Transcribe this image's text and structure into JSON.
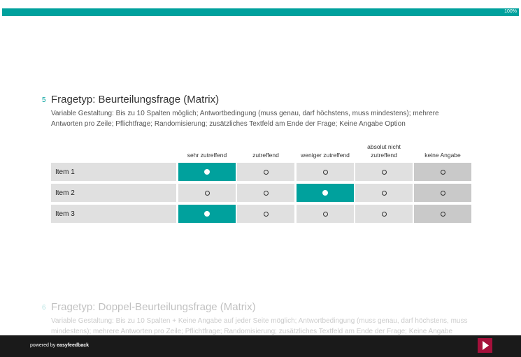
{
  "header": {
    "progress": "100%"
  },
  "questions": [
    {
      "number": "5",
      "title": "Fragetyp: Beurteilungsfrage (Matrix)",
      "description": "Variable Gestaltung: Bis zu 10 Spalten möglich; Antwortbedingung (muss genau, darf höchstens, muss mindestens); mehrere Antworten pro Zeile; Pflichtfrage; Randomisierung; zusätzliches Textfeld am Ende der Frage; Keine Angabe Option",
      "matrix": {
        "columns": [
          "sehr zutreffend",
          "zutreffend",
          "weniger zutreffend",
          "absolut nicht zutreffend",
          "keine Angabe"
        ],
        "rows": [
          {
            "label": "Item 1",
            "selected": 0
          },
          {
            "label": "Item 2",
            "selected": 2
          },
          {
            "label": "Item 3",
            "selected": 0
          }
        ]
      }
    },
    {
      "number": "6",
      "title": "Fragetyp: Doppel-Beurteilungsfrage (Matrix)",
      "description": "Variable Gestaltung: Bis zu 10 Spalten + Keine Angabe auf jeder Seite möglich; Antwortbedingung (muss genau, darf höchstens, muss mindestens); mehrere Antworten pro Zeile; Pflichtfrage; Randomisierung; zusätzliches Textfeld am Ende der Frage; Keine Angabe Option"
    }
  ],
  "footer": {
    "powered_by": "powered by",
    "brand": "easyfeedback"
  }
}
